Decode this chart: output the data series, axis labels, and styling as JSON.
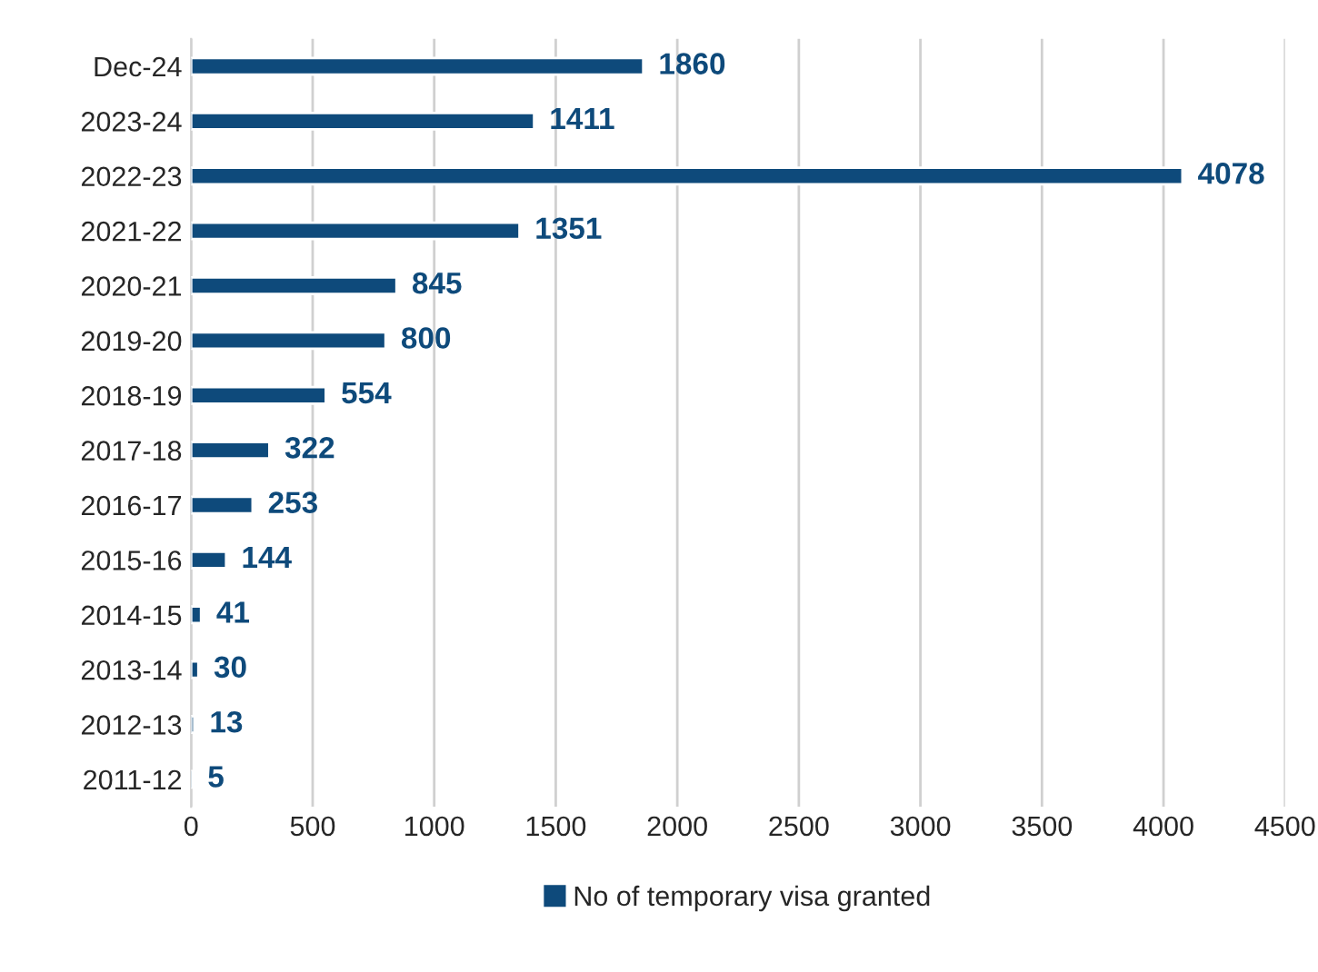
{
  "chart_data": {
    "type": "bar",
    "orientation": "horizontal",
    "categories": [
      "Dec-24",
      "2023-24",
      "2022-23",
      "2021-22",
      "2020-21",
      "2019-20",
      "2018-19",
      "2017-18",
      "2016-17",
      "2015-16",
      "2014-15",
      "2013-14",
      "2012-13",
      "2011-12"
    ],
    "series": [
      {
        "name": "No of temporary visa granted",
        "color": "#0e4a7b",
        "values": [
          1860,
          1411,
          4078,
          1351,
          845,
          800,
          554,
          322,
          253,
          144,
          41,
          30,
          13,
          5
        ]
      }
    ],
    "xlim": [
      0,
      4500
    ],
    "xticks": [
      0,
      500,
      1000,
      1500,
      2000,
      2500,
      3000,
      3500,
      4000,
      4500
    ],
    "grid": "x",
    "legend": "bottom",
    "data_labels": true
  }
}
